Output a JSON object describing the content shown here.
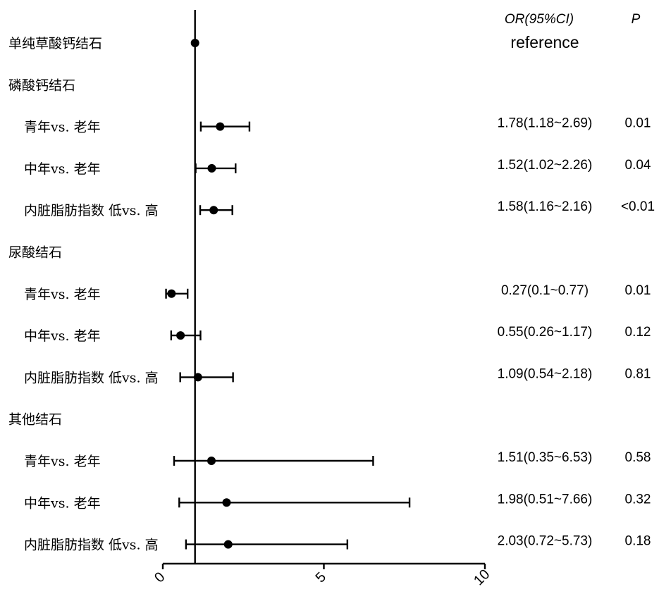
{
  "chart_data": {
    "type": "forest",
    "headers": {
      "or_ci": "OR(95%CI)",
      "p": "P"
    },
    "reference_line": 1,
    "xlim": [
      0,
      10
    ],
    "x_ticks": [
      "0",
      "5",
      "10"
    ],
    "rows": [
      {
        "label": "单纯草酸钙结石",
        "level": 0,
        "or": 1,
        "lo": null,
        "hi": null,
        "ci_text": "reference",
        "p": ""
      },
      {
        "label": "磷酸钙结石",
        "level": 0,
        "or": null,
        "lo": null,
        "hi": null,
        "ci_text": "",
        "p": ""
      },
      {
        "label": "青年vs. 老年",
        "level": 1,
        "or": 1.78,
        "lo": 1.18,
        "hi": 2.69,
        "ci_text": "1.78(1.18~2.69)",
        "p": "0.01"
      },
      {
        "label": "中年vs. 老年",
        "level": 1,
        "or": 1.52,
        "lo": 1.02,
        "hi": 2.26,
        "ci_text": "1.52(1.02~2.26)",
        "p": "0.04"
      },
      {
        "label": "内脏脂肪指数 低vs. 高",
        "level": 1,
        "or": 1.58,
        "lo": 1.16,
        "hi": 2.16,
        "ci_text": "1.58(1.16~2.16)",
        "p": "<0.01"
      },
      {
        "label": "尿酸结石",
        "level": 0,
        "or": null,
        "lo": null,
        "hi": null,
        "ci_text": "",
        "p": ""
      },
      {
        "label": "青年vs. 老年",
        "level": 1,
        "or": 0.27,
        "lo": 0.1,
        "hi": 0.77,
        "ci_text": "0.27(0.1~0.77)",
        "p": "0.01"
      },
      {
        "label": "中年vs. 老年",
        "level": 1,
        "or": 0.55,
        "lo": 0.26,
        "hi": 1.17,
        "ci_text": "0.55(0.26~1.17)",
        "p": "0.12"
      },
      {
        "label": "内脏脂肪指数 低vs. 高",
        "level": 1,
        "or": 1.09,
        "lo": 0.54,
        "hi": 2.18,
        "ci_text": "1.09(0.54~2.18)",
        "p": "0.81"
      },
      {
        "label": "其他结石",
        "level": 0,
        "or": null,
        "lo": null,
        "hi": null,
        "ci_text": "",
        "p": ""
      },
      {
        "label": "青年vs. 老年",
        "level": 1,
        "or": 1.51,
        "lo": 0.35,
        "hi": 6.53,
        "ci_text": "1.51(0.35~6.53)",
        "p": "0.58"
      },
      {
        "label": "中年vs. 老年",
        "level": 1,
        "or": 1.98,
        "lo": 0.51,
        "hi": 7.66,
        "ci_text": "1.98(0.51~7.66)",
        "p": "0.32"
      },
      {
        "label": "内脏脂肪指数 低vs. 高",
        "level": 1,
        "or": 2.03,
        "lo": 0.72,
        "hi": 5.73,
        "ci_text": "2.03(0.72~5.73)",
        "p": "0.18"
      }
    ]
  }
}
